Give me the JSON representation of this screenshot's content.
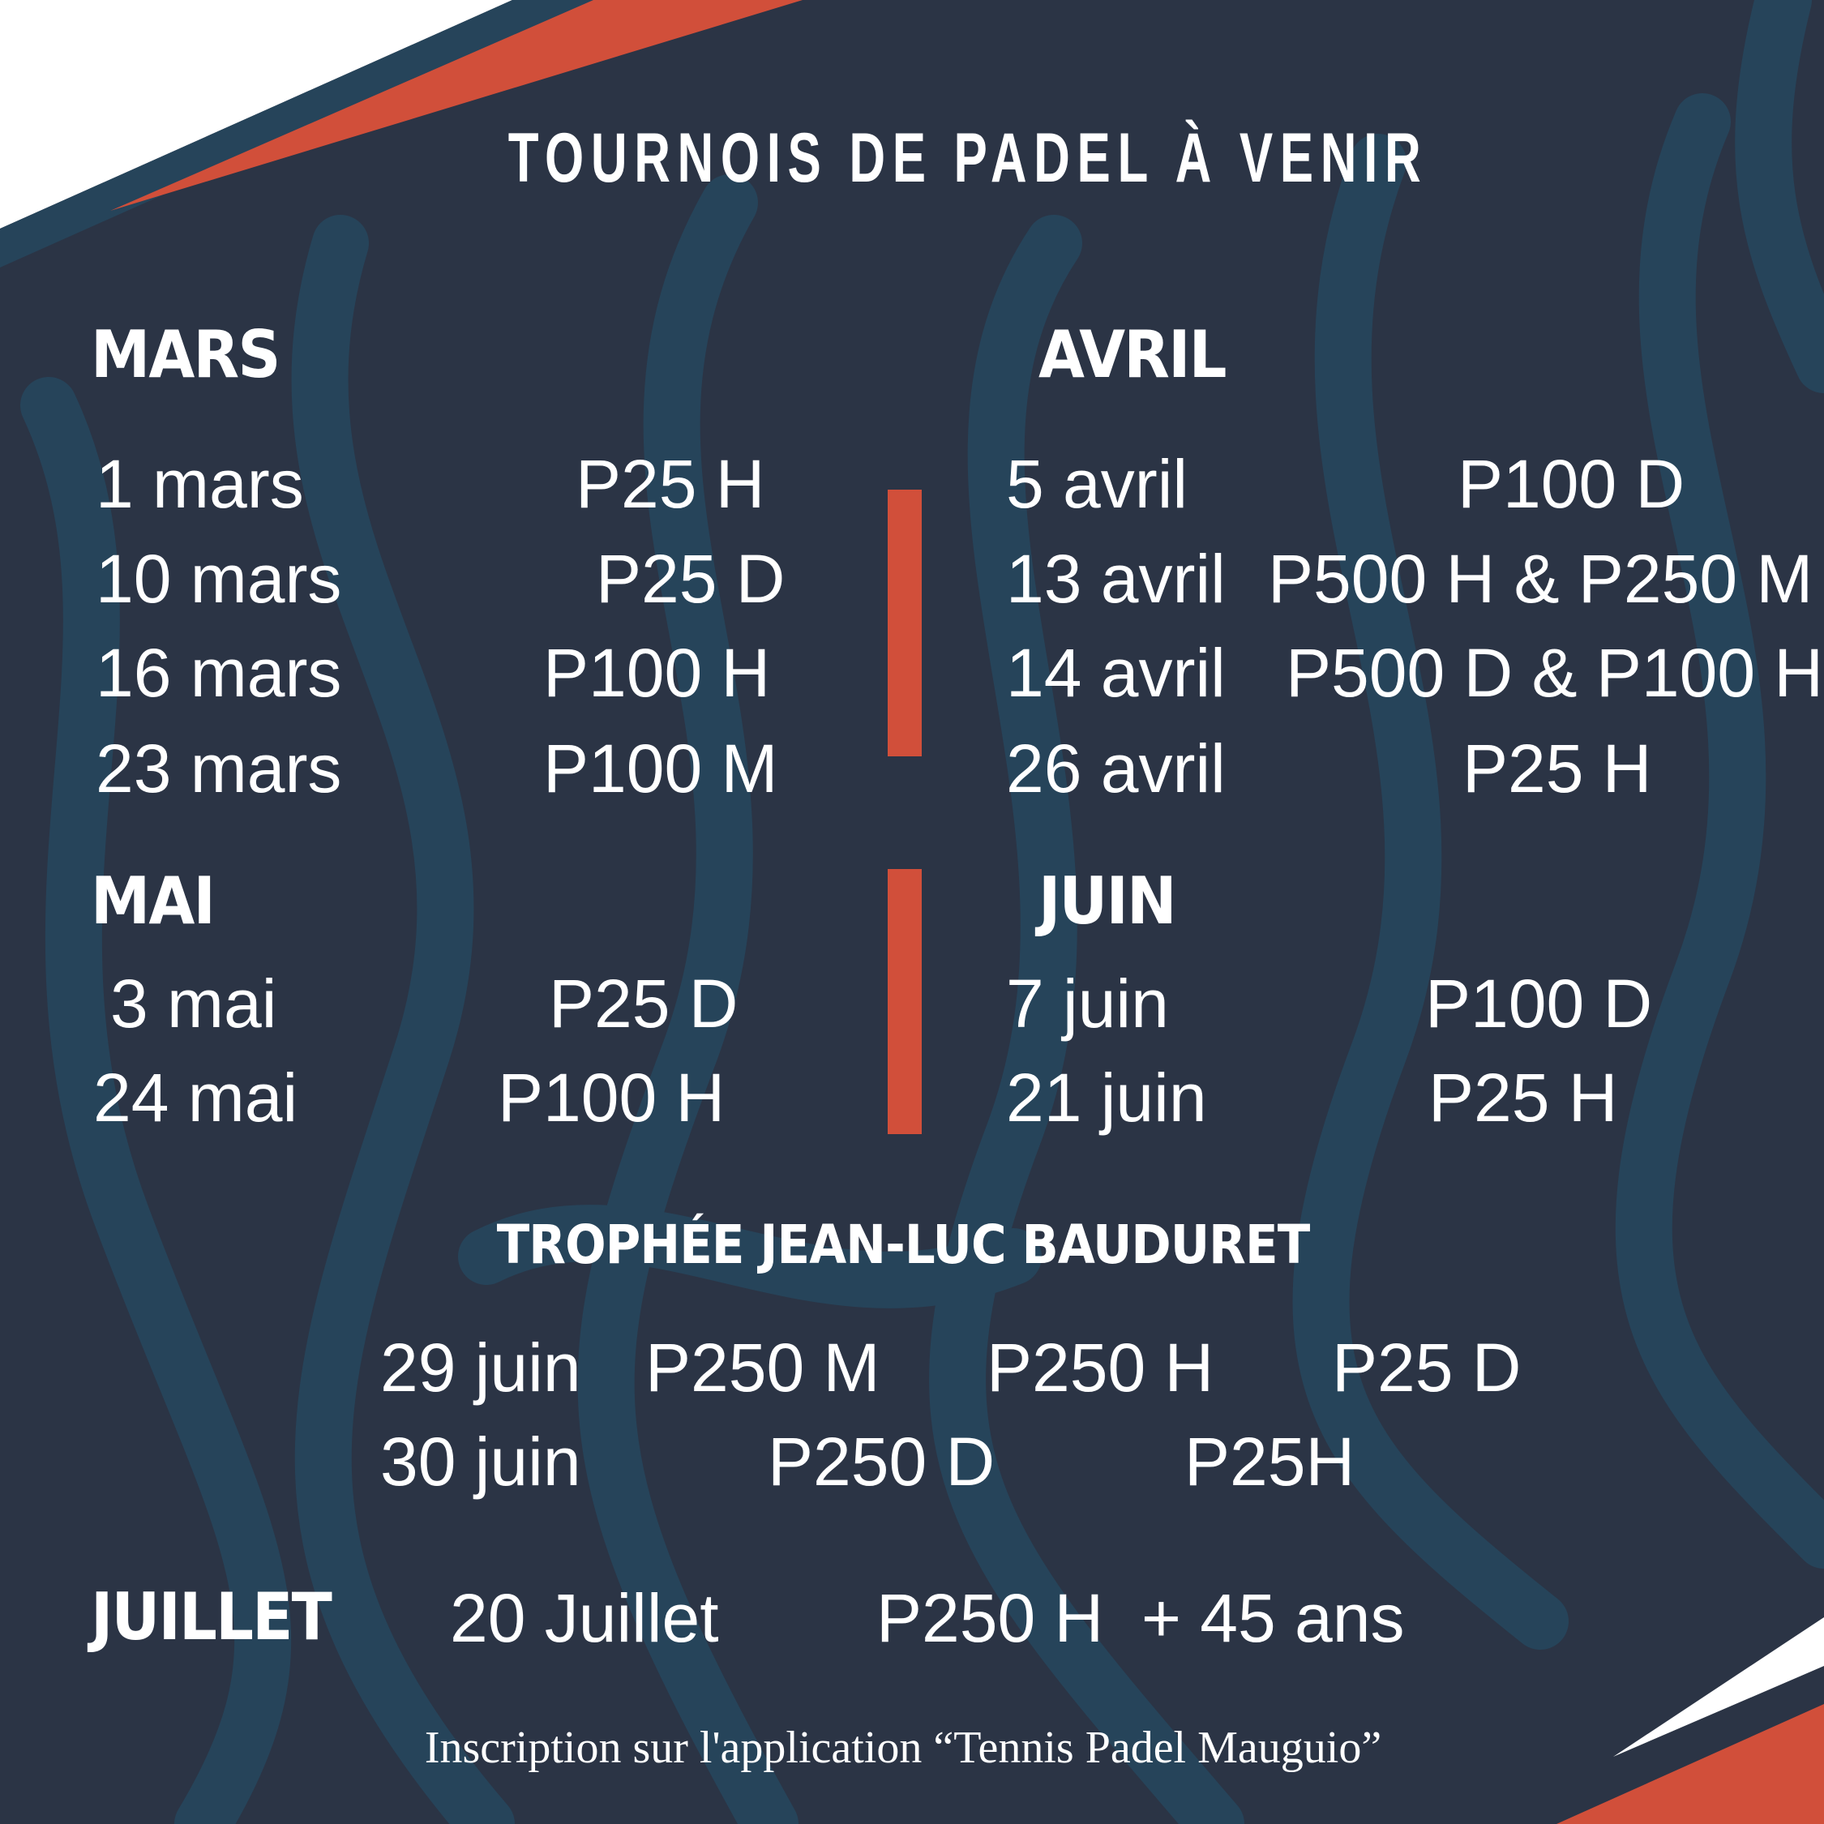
{
  "title": "TOURNOIS DE PADEL À VENIR",
  "colors": {
    "background": "#2b3445",
    "swirl": "#26445a",
    "accent": "#d14f3a",
    "text": "#ffffff"
  },
  "mars": {
    "heading": "MARS",
    "rows": [
      {
        "date": "1 mars",
        "event": "P25 H"
      },
      {
        "date": "10 mars",
        "event": "P25 D"
      },
      {
        "date": "16 mars",
        "event": "P100 H"
      },
      {
        "date": "23 mars",
        "event": "P100 M"
      }
    ]
  },
  "avril": {
    "heading": "AVRIL",
    "rows": [
      {
        "date": "5 avril",
        "event": "P100 D"
      },
      {
        "date": "13 avril",
        "event": "P500 H & P250 M"
      },
      {
        "date": "14 avril",
        "event": "P500 D & P100 H"
      },
      {
        "date": "26 avril",
        "event": "P25 H"
      }
    ]
  },
  "mai": {
    "heading": "MAI",
    "rows": [
      {
        "date": "3 mai",
        "event": "P25 D"
      },
      {
        "date": "24 mai",
        "event": "P100 H"
      }
    ]
  },
  "juin": {
    "heading": "JUIN",
    "rows": [
      {
        "date": "7 juin",
        "event": "P100 D"
      },
      {
        "date": "21 juin",
        "event": "P25 H"
      }
    ]
  },
  "trophy": {
    "heading": "TROPHÉE JEAN-LUC BAUDURET",
    "rows": [
      {
        "date": "29 juin",
        "events": [
          "P250 M",
          "P250 H",
          "P25 D"
        ]
      },
      {
        "date": "30 juin",
        "events": [
          "P250 D",
          "P25H"
        ]
      }
    ]
  },
  "juillet": {
    "heading": "JUILLET",
    "date": "20 Juillet",
    "event": "P250 H  + 45 ans"
  },
  "footer": "Inscription sur l'application “Tennis Padel Mauguio”"
}
